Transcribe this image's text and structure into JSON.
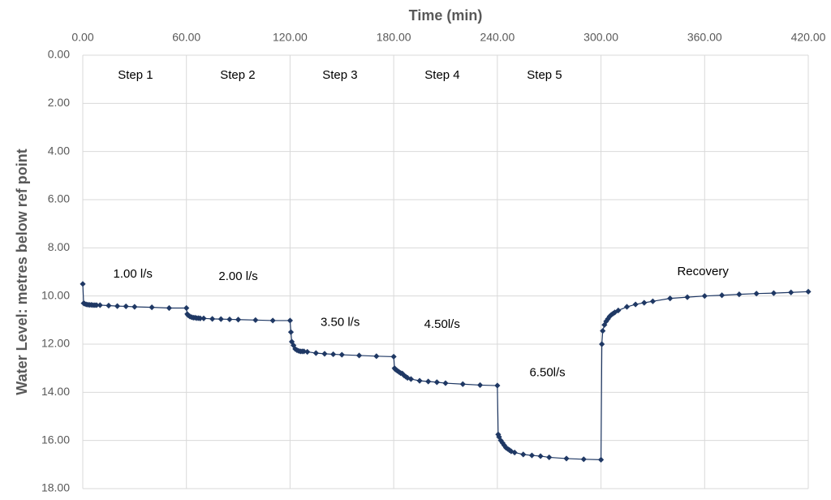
{
  "chart_data": {
    "type": "line",
    "x_title": "Time (min)",
    "y_title": "Water Level: metres below ref point",
    "xlim": [
      0,
      420
    ],
    "xticks": [
      {
        "value": 0,
        "label": "0.00"
      },
      {
        "value": 60,
        "label": "60.00"
      },
      {
        "value": 120,
        "label": "120.00"
      },
      {
        "value": 180,
        "label": "180.00"
      },
      {
        "value": 240,
        "label": "240.00"
      },
      {
        "value": 300,
        "label": "300.00"
      },
      {
        "value": 360,
        "label": "360.00"
      },
      {
        "value": 420,
        "label": "420.00"
      }
    ],
    "ylim": [
      0,
      18
    ],
    "y_inverted": true,
    "yticks": [
      {
        "value": 0,
        "label": "0.00"
      },
      {
        "value": 2,
        "label": "2.00"
      },
      {
        "value": 4,
        "label": "4.00"
      },
      {
        "value": 6,
        "label": "6.00"
      },
      {
        "value": 8,
        "label": "8.00"
      },
      {
        "value": 10,
        "label": "10.00"
      },
      {
        "value": 12,
        "label": "12.00"
      },
      {
        "value": 14,
        "label": "14.00"
      },
      {
        "value": 16,
        "label": "16.00"
      },
      {
        "value": 18,
        "label": "18.00"
      }
    ],
    "grid": true,
    "series": [
      {
        "color": "#1f3864",
        "x": [
          0,
          0.5,
          1,
          2,
          3,
          4,
          5,
          6,
          7,
          8,
          10,
          15,
          20,
          25,
          30,
          40,
          50,
          60,
          60.5,
          61,
          62,
          63,
          64,
          65,
          66,
          67,
          68,
          70,
          75,
          80,
          85,
          90,
          100,
          110,
          120,
          120.5,
          121,
          122,
          123,
          124,
          125,
          126,
          127,
          128,
          130,
          135,
          140,
          145,
          150,
          160,
          170,
          180,
          180.5,
          181,
          182,
          183,
          184,
          185,
          186,
          187,
          188,
          190,
          195,
          200,
          205,
          210,
          220,
          230,
          240,
          240.5,
          241,
          242,
          243,
          244,
          245,
          246,
          247,
          248,
          250,
          255,
          260,
          265,
          270,
          280,
          290,
          300,
          300.5,
          301,
          302,
          303,
          304,
          305,
          306,
          307,
          308,
          310,
          315,
          320,
          325,
          330,
          340,
          350,
          360,
          370,
          380,
          390,
          400,
          410,
          420
        ],
        "values": [
          9.5,
          10.3,
          10.32,
          10.35,
          10.36,
          10.37,
          10.37,
          10.38,
          10.38,
          10.38,
          10.38,
          10.4,
          10.42,
          10.43,
          10.45,
          10.47,
          10.5,
          10.5,
          10.75,
          10.8,
          10.85,
          10.88,
          10.9,
          10.9,
          10.92,
          10.92,
          10.93,
          10.93,
          10.95,
          10.96,
          10.97,
          10.98,
          11.0,
          11.02,
          11.02,
          11.5,
          11.9,
          12.05,
          12.2,
          12.25,
          12.28,
          12.3,
          12.3,
          12.3,
          12.32,
          12.37,
          12.4,
          12.42,
          12.44,
          12.47,
          12.5,
          12.52,
          13.0,
          13.05,
          13.1,
          13.15,
          13.2,
          13.22,
          13.3,
          13.35,
          13.4,
          13.45,
          13.52,
          13.55,
          13.58,
          13.62,
          13.66,
          13.7,
          13.72,
          15.75,
          15.85,
          16.0,
          16.1,
          16.2,
          16.3,
          16.35,
          16.4,
          16.45,
          16.5,
          16.58,
          16.62,
          16.65,
          16.7,
          16.75,
          16.78,
          16.8,
          12.0,
          11.45,
          11.2,
          11.05,
          10.95,
          10.85,
          10.78,
          10.73,
          10.68,
          10.6,
          10.45,
          10.35,
          10.28,
          10.22,
          10.1,
          10.05,
          10.0,
          9.97,
          9.93,
          9.9,
          9.88,
          9.85,
          9.82
        ]
      }
    ],
    "annotations": [
      {
        "text": "Step 1",
        "x": 30.5,
        "y": 0.84
      },
      {
        "text": "Step 2",
        "x": 89.7,
        "y": 0.84
      },
      {
        "text": "Step 3",
        "x": 148.9,
        "y": 0.84
      },
      {
        "text": "Step 4",
        "x": 208.1,
        "y": 0.84
      },
      {
        "text": "Step 5",
        "x": 267.3,
        "y": 0.84
      },
      {
        "text": "1.00 l/s",
        "x": 29,
        "y": 9.1
      },
      {
        "text": "2.00 l/s",
        "x": 90,
        "y": 9.2
      },
      {
        "text": "3.50 l/s",
        "x": 149,
        "y": 11.1
      },
      {
        "text": "4.50l/s",
        "x": 208,
        "y": 11.2
      },
      {
        "text": "6.50l/s",
        "x": 269,
        "y": 13.2
      },
      {
        "text": "Recovery",
        "x": 359,
        "y": 9.0
      }
    ]
  }
}
